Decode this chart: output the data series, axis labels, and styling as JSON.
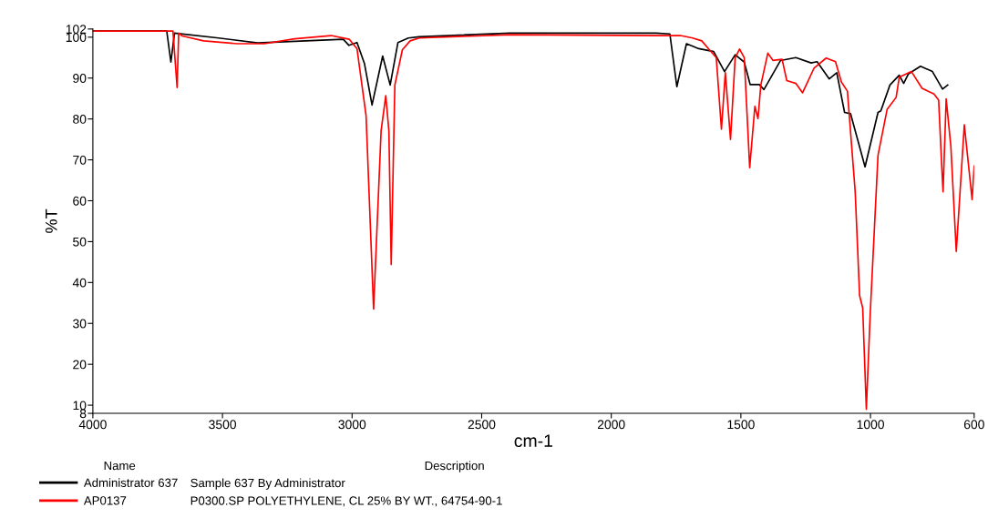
{
  "chart_data": {
    "type": "line",
    "xlabel": "cm-1",
    "ylabel": "%T",
    "xlim": [
      4000,
      600
    ],
    "ylim": [
      8,
      102
    ],
    "xticks": [
      4000,
      3500,
      3000,
      2500,
      2000,
      1500,
      1000,
      600
    ],
    "yticks": [
      8,
      10,
      20,
      30,
      40,
      50,
      60,
      70,
      80,
      90,
      100,
      102
    ],
    "grid": false,
    "legend": "bottom",
    "marker": "none",
    "line_style": "solid",
    "annotations": [
      "Name",
      "Description",
      "Sample 637 By Administrator",
      "P0300.SP POLYETHYLENE, CL 25% BY WT., 64754-90-1"
    ],
    "series": [
      {
        "name": "Administrator 637",
        "color": "#000000",
        "x": [
          4000,
          3715,
          3699,
          3685,
          3515,
          3364,
          3034,
          3012,
          2981,
          2952,
          2923,
          2882,
          2853,
          2823,
          2783,
          2741,
          2390,
          1827,
          1774,
          1747,
          1710,
          1663,
          1605,
          1563,
          1522,
          1487,
          1464,
          1429,
          1411,
          1347,
          1288,
          1229,
          1206,
          1159,
          1130,
          1100,
          1077,
          1021,
          971,
          960,
          925,
          889,
          872,
          854,
          807,
          761,
          722,
          702
        ],
        "values": [
          101.5,
          101.5,
          93.9,
          101,
          99.8,
          98.6,
          99.5,
          98,
          98.7,
          93.5,
          83.4,
          95.4,
          88.3,
          98.7,
          99.8,
          100.1,
          101.0,
          101,
          100.8,
          87.9,
          98.4,
          97.2,
          96.5,
          91.6,
          95.7,
          93.9,
          88.4,
          88.4,
          87.2,
          94.3,
          95,
          93.7,
          94,
          89.8,
          91.3,
          81.6,
          81.3,
          68.3,
          81.6,
          82,
          88.3,
          90.7,
          88.7,
          91,
          92.9,
          91.6,
          87.3,
          88.3
        ]
      },
      {
        "name": "AP0137",
        "color": "#ff0000",
        "x": [
          4000,
          3691,
          3675,
          3669,
          3655,
          3573,
          3444,
          3339,
          3222,
          3081,
          3011,
          2981,
          2946,
          2917,
          2888,
          2870,
          2858,
          2849,
          2835,
          2806,
          2776,
          2741,
          2390,
          1827,
          1733,
          1686,
          1651,
          1616,
          1595,
          1575,
          1560,
          1540,
          1522,
          1505,
          1487,
          1466,
          1446,
          1434,
          1423,
          1396,
          1376,
          1341,
          1323,
          1288,
          1262,
          1218,
          1171,
          1135,
          1112,
          1089,
          1059,
          1042,
          1030,
          1016,
          1001,
          971,
          936,
          901,
          889,
          842,
          801,
          755,
          737,
          726,
          720,
          708,
          690,
          669,
          638,
          608,
          600
        ],
        "values": [
          101.5,
          101.5,
          87.7,
          101,
          100.3,
          99.1,
          98.4,
          98.4,
          99.6,
          100.4,
          99.5,
          97.2,
          80.8,
          33.5,
          77.1,
          85.7,
          77.1,
          44.4,
          88.3,
          96.9,
          99.1,
          99.8,
          100.6,
          100.4,
          100.4,
          99.8,
          99.1,
          96.5,
          95,
          77.5,
          91.3,
          75,
          95,
          97.1,
          95,
          68.1,
          83.1,
          80.1,
          88.3,
          96.1,
          94.3,
          94.6,
          89.4,
          88.7,
          86.4,
          92.4,
          94.9,
          94,
          89,
          86.8,
          62.2,
          36.8,
          33.8,
          9,
          32.4,
          71.1,
          82.3,
          85.3,
          90.2,
          91.6,
          87.5,
          86.1,
          84.6,
          69.6,
          62.2,
          84.9,
          73.4,
          47.6,
          78.6,
          60.3,
          68.5
        ]
      }
    ]
  }
}
